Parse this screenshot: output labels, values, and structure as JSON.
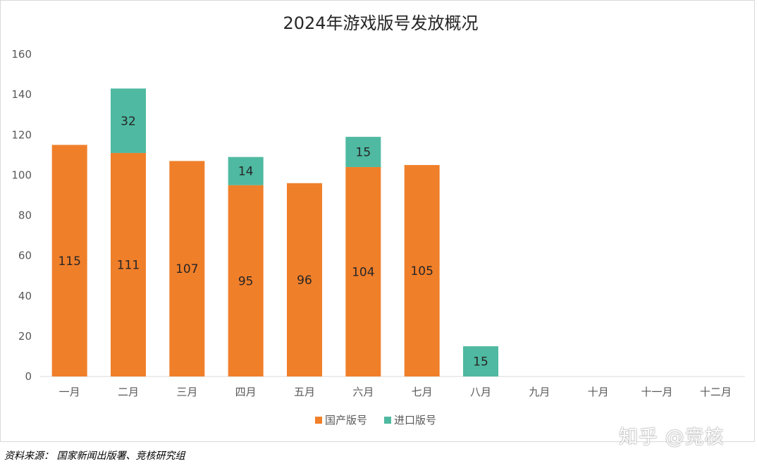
{
  "chart_data": {
    "type": "bar",
    "stacked": true,
    "title": "2024年游戏版号发放概况",
    "categories": [
      "一月",
      "二月",
      "三月",
      "四月",
      "五月",
      "六月",
      "七月",
      "八月",
      "九月",
      "十月",
      "十一月",
      "十二月"
    ],
    "series": [
      {
        "name": "国产版号",
        "color": "#f07f2a",
        "values": [
          115,
          111,
          107,
          95,
          96,
          104,
          105,
          null,
          null,
          null,
          null,
          null
        ]
      },
      {
        "name": "进口版号",
        "color": "#4fb9a1",
        "values": [
          null,
          32,
          null,
          14,
          null,
          15,
          null,
          15,
          null,
          null,
          null,
          null
        ]
      }
    ],
    "yticks": [
      0,
      20,
      40,
      60,
      80,
      100,
      120,
      140,
      160
    ],
    "ylim": [
      0,
      160
    ],
    "xlabel": "",
    "ylabel": "",
    "legend_position": "bottom",
    "grid": false
  },
  "footer": {
    "source": "资料来源：  国家新闻出版署、竞核研究组"
  },
  "watermark": "知乎 @竞核"
}
